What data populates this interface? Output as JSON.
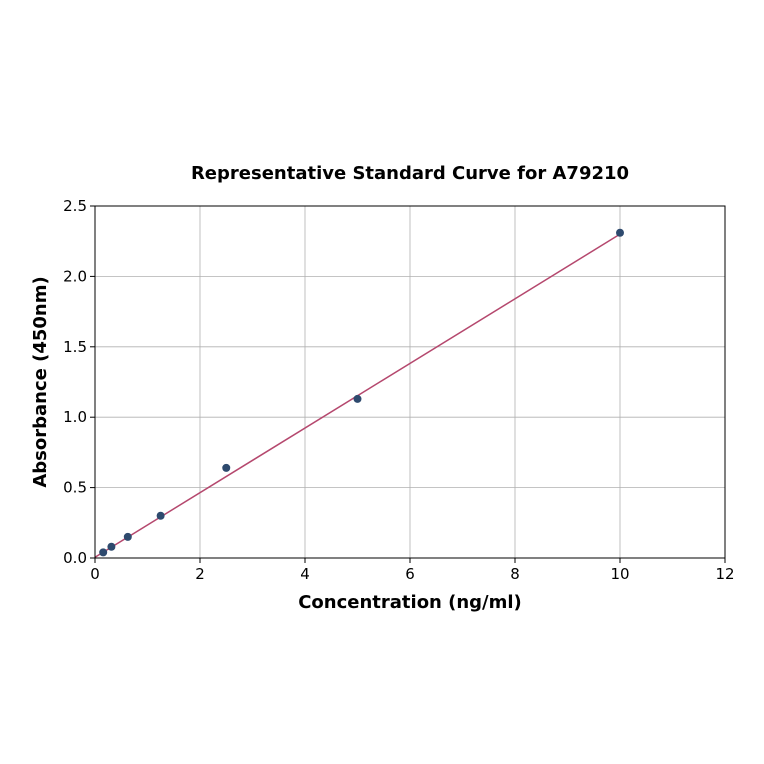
{
  "chart_data": {
    "type": "scatter",
    "title": "Representative Standard Curve for A79210",
    "xlabel": "Concentration (ng/ml)",
    "ylabel": "Absorbance (450nm)",
    "xlim": [
      0,
      12
    ],
    "ylim": [
      0,
      2.5
    ],
    "xticks": [
      "0",
      "2",
      "4",
      "6",
      "8",
      "10",
      "12"
    ],
    "yticks": [
      "0.0",
      "0.5",
      "1.0",
      "1.5",
      "2.0",
      "2.5"
    ],
    "grid": true,
    "points": {
      "x": [
        0.156,
        0.3125,
        0.625,
        1.25,
        2.5,
        5,
        10
      ],
      "y": [
        0.04,
        0.08,
        0.15,
        0.3,
        0.64,
        1.13,
        2.31
      ]
    },
    "fit_line": {
      "x": [
        0,
        10
      ],
      "y": [
        0.005,
        2.3
      ]
    },
    "colors": {
      "points": "#2e4a6e",
      "line": "#b5486e",
      "grid": "#b0b0b0"
    }
  }
}
